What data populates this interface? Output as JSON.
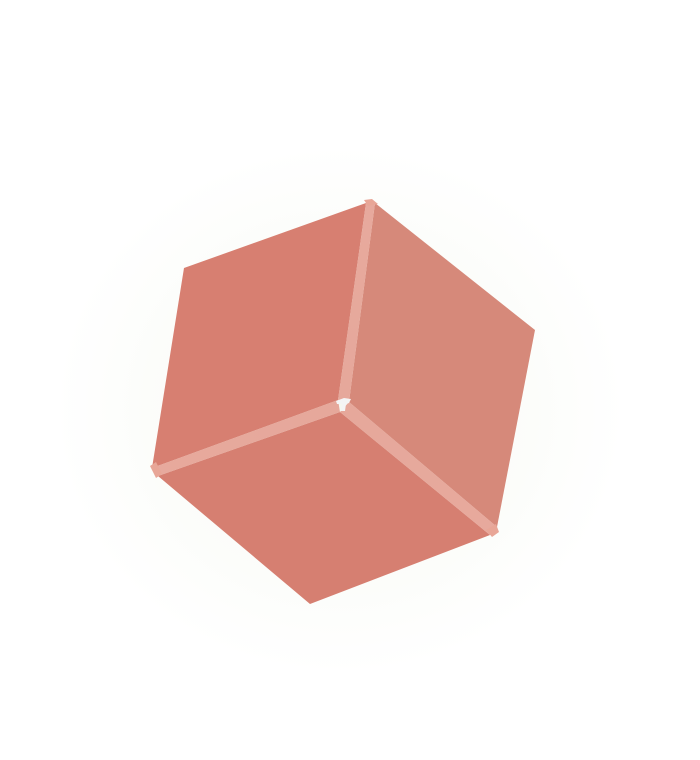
{
  "scene": {
    "background_color": "#ffffff",
    "object": "cube",
    "colors": {
      "left_face": "#d77f71",
      "right_face": "#d6897a",
      "bottom_face": "#d67f71",
      "edge_highlight": "#e39a8c",
      "center_gap": "#f4f4f4"
    }
  }
}
